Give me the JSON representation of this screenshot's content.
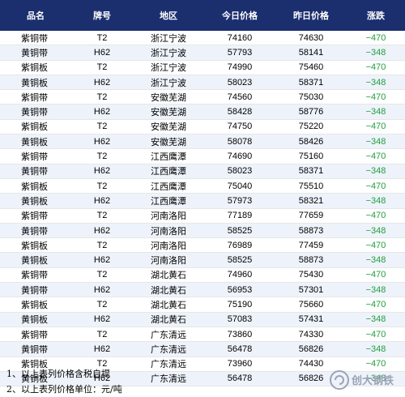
{
  "table": {
    "headers": [
      "品名",
      "牌号",
      "地区",
      "今日价格",
      "昨日价格",
      "涨跌"
    ],
    "rows": [
      [
        "紫铜带",
        "T2",
        "浙江宁波",
        "74160",
        "74630",
        "−470"
      ],
      [
        "黄铜带",
        "H62",
        "浙江宁波",
        "57793",
        "58141",
        "−348"
      ],
      [
        "紫铜板",
        "T2",
        "浙江宁波",
        "74990",
        "75460",
        "−470"
      ],
      [
        "黄铜板",
        "H62",
        "浙江宁波",
        "58023",
        "58371",
        "−348"
      ],
      [
        "紫铜带",
        "T2",
        "安徽芜湖",
        "74560",
        "75030",
        "−470"
      ],
      [
        "黄铜带",
        "H62",
        "安徽芜湖",
        "58428",
        "58776",
        "−348"
      ],
      [
        "紫铜板",
        "T2",
        "安徽芜湖",
        "74750",
        "75220",
        "−470"
      ],
      [
        "黄铜板",
        "H62",
        "安徽芜湖",
        "58078",
        "58426",
        "−348"
      ],
      [
        "紫铜带",
        "T2",
        "江西鹰潭",
        "74690",
        "75160",
        "−470"
      ],
      [
        "黄铜带",
        "H62",
        "江西鹰潭",
        "58023",
        "58371",
        "−348"
      ],
      [
        "紫铜板",
        "T2",
        "江西鹰潭",
        "75040",
        "75510",
        "−470"
      ],
      [
        "黄铜板",
        "H62",
        "江西鹰潭",
        "57973",
        "58321",
        "−348"
      ],
      [
        "紫铜带",
        "T2",
        "河南洛阳",
        "77189",
        "77659",
        "−470"
      ],
      [
        "黄铜带",
        "H62",
        "河南洛阳",
        "58525",
        "58873",
        "−348"
      ],
      [
        "紫铜板",
        "T2",
        "河南洛阳",
        "76989",
        "77459",
        "−470"
      ],
      [
        "黄铜板",
        "H62",
        "河南洛阳",
        "58525",
        "58873",
        "−348"
      ],
      [
        "紫铜带",
        "T2",
        "湖北黄石",
        "74960",
        "75430",
        "−470"
      ],
      [
        "黄铜带",
        "H62",
        "湖北黄石",
        "56953",
        "57301",
        "−348"
      ],
      [
        "紫铜板",
        "T2",
        "湖北黄石",
        "75190",
        "75660",
        "−470"
      ],
      [
        "黄铜板",
        "H62",
        "湖北黄石",
        "57083",
        "57431",
        "−348"
      ],
      [
        "紫铜带",
        "T2",
        "广东清远",
        "73860",
        "74330",
        "−470"
      ],
      [
        "黄铜带",
        "H62",
        "广东清远",
        "56478",
        "56826",
        "−348"
      ],
      [
        "紫铜板",
        "T2",
        "广东清远",
        "73960",
        "74430",
        "−470"
      ],
      [
        "黄铜板",
        "H62",
        "广东清远",
        "56478",
        "56826",
        "−348"
      ]
    ]
  },
  "notes": [
    "1、以上表列价格含税自提",
    "2、以上表列价格单位：元/吨"
  ],
  "watermark": {
    "text": "创大钢铁",
    "color": "#9aa3b5",
    "icon": "chuangda-logo-icon"
  },
  "colors": {
    "header_bg": "#1b2e6e",
    "change": "#1f9e3d",
    "alt_row": "#eef3fb"
  }
}
